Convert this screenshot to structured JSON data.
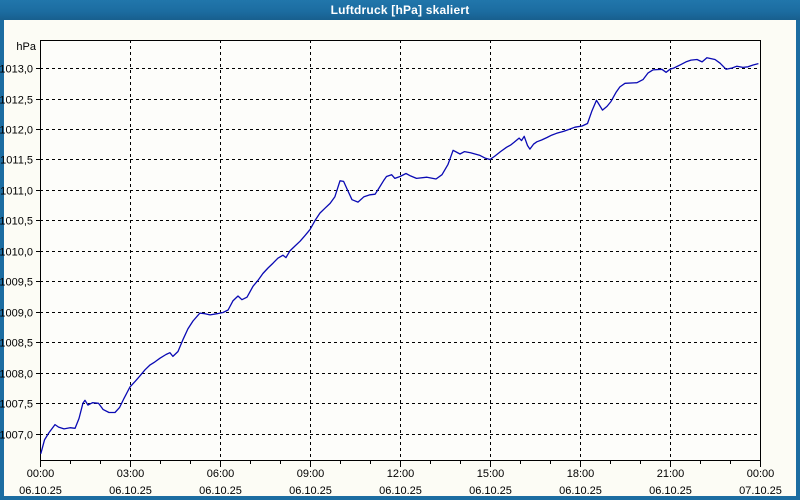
{
  "window": {
    "title": "Luftdruck [hPa] skaliert"
  },
  "colors": {
    "titlebar": "#1c6da1",
    "window_border": "#1c6da1",
    "plot_background": "#fdfdfa",
    "grid": "#000000",
    "series_line": "#0a0ab4",
    "text": "#000000"
  },
  "chart_data": {
    "type": "line",
    "title": "Luftdruck [hPa] skaliert",
    "ylabel": "hPa",
    "xlabel": "",
    "grid": "dashed",
    "legend": "none",
    "xlim_hours": [
      0,
      24
    ],
    "ylim": [
      1006.57,
      1013.46
    ],
    "x_axis": {
      "minor_tick_hours": 1,
      "major_tick_hours": 3,
      "major_ticks": [
        {
          "hour": 0,
          "time": "00:00",
          "date": "06.10.25"
        },
        {
          "hour": 3,
          "time": "03:00",
          "date": "06.10.25"
        },
        {
          "hour": 6,
          "time": "06:00",
          "date": "06.10.25"
        },
        {
          "hour": 9,
          "time": "09:00",
          "date": "06.10.25"
        },
        {
          "hour": 12,
          "time": "12:00",
          "date": "06.10.25"
        },
        {
          "hour": 15,
          "time": "15:00",
          "date": "06.10.25"
        },
        {
          "hour": 18,
          "time": "18:00",
          "date": "06.10.25"
        },
        {
          "hour": 21,
          "time": "21:00",
          "date": "06.10.25"
        },
        {
          "hour": 24,
          "time": "00:00",
          "date": "07.10.25"
        }
      ]
    },
    "y_axis": {
      "step": 0.5,
      "ticks": [
        {
          "value": 1013.0,
          "label": "1013,0"
        },
        {
          "value": 1012.5,
          "label": "1012,5"
        },
        {
          "value": 1012.0,
          "label": "1012,0"
        },
        {
          "value": 1011.5,
          "label": "1011,5"
        },
        {
          "value": 1011.0,
          "label": "1011,0"
        },
        {
          "value": 1010.5,
          "label": "1010,5"
        },
        {
          "value": 1010.0,
          "label": "1010,0"
        },
        {
          "value": 1009.5,
          "label": "1009,5"
        },
        {
          "value": 1009.0,
          "label": "1009,0"
        },
        {
          "value": 1008.5,
          "label": "1008,5"
        },
        {
          "value": 1008.0,
          "label": "1008,0"
        },
        {
          "value": 1007.5,
          "label": "1007,5"
        },
        {
          "value": 1007.0,
          "label": "1007,0"
        }
      ]
    },
    "series": [
      {
        "name": "Luftdruck",
        "unit": "hPa",
        "color": "#0a0ab4",
        "points_hour_hpa": [
          [
            0.03,
            1006.68
          ],
          [
            0.15,
            1006.9
          ],
          [
            0.3,
            1007.02
          ],
          [
            0.5,
            1007.15
          ],
          [
            0.62,
            1007.11
          ],
          [
            0.8,
            1007.08
          ],
          [
            1.0,
            1007.1
          ],
          [
            1.17,
            1007.09
          ],
          [
            1.3,
            1007.25
          ],
          [
            1.43,
            1007.5
          ],
          [
            1.5,
            1007.55
          ],
          [
            1.6,
            1007.47
          ],
          [
            1.75,
            1007.51
          ],
          [
            1.95,
            1007.5
          ],
          [
            2.1,
            1007.4
          ],
          [
            2.3,
            1007.35
          ],
          [
            2.5,
            1007.35
          ],
          [
            2.65,
            1007.43
          ],
          [
            2.8,
            1007.58
          ],
          [
            3.0,
            1007.77
          ],
          [
            3.17,
            1007.86
          ],
          [
            3.33,
            1007.95
          ],
          [
            3.5,
            1008.05
          ],
          [
            3.67,
            1008.13
          ],
          [
            3.83,
            1008.18
          ],
          [
            4.0,
            1008.24
          ],
          [
            4.2,
            1008.3
          ],
          [
            4.33,
            1008.33
          ],
          [
            4.43,
            1008.27
          ],
          [
            4.6,
            1008.35
          ],
          [
            4.77,
            1008.55
          ],
          [
            4.93,
            1008.72
          ],
          [
            5.1,
            1008.85
          ],
          [
            5.33,
            1008.98
          ],
          [
            5.5,
            1008.97
          ],
          [
            5.67,
            1008.95
          ],
          [
            5.9,
            1008.97
          ],
          [
            6.1,
            1008.99
          ],
          [
            6.27,
            1009.03
          ],
          [
            6.43,
            1009.18
          ],
          [
            6.6,
            1009.26
          ],
          [
            6.73,
            1009.2
          ],
          [
            6.9,
            1009.24
          ],
          [
            7.1,
            1009.42
          ],
          [
            7.27,
            1009.52
          ],
          [
            7.43,
            1009.63
          ],
          [
            7.6,
            1009.72
          ],
          [
            7.77,
            1009.8
          ],
          [
            7.93,
            1009.88
          ],
          [
            8.1,
            1009.93
          ],
          [
            8.2,
            1009.89
          ],
          [
            8.33,
            1010.0
          ],
          [
            8.5,
            1010.08
          ],
          [
            8.67,
            1010.16
          ],
          [
            8.83,
            1010.25
          ],
          [
            9.0,
            1010.35
          ],
          [
            9.17,
            1010.5
          ],
          [
            9.33,
            1010.62
          ],
          [
            9.5,
            1010.7
          ],
          [
            9.67,
            1010.78
          ],
          [
            9.83,
            1010.89
          ],
          [
            10.0,
            1011.15
          ],
          [
            10.12,
            1011.14
          ],
          [
            10.25,
            1011.0
          ],
          [
            10.4,
            1010.84
          ],
          [
            10.6,
            1010.8
          ],
          [
            10.8,
            1010.89
          ],
          [
            11.0,
            1010.92
          ],
          [
            11.17,
            1010.93
          ],
          [
            11.3,
            1011.03
          ],
          [
            11.45,
            1011.15
          ],
          [
            11.55,
            1011.22
          ],
          [
            11.72,
            1011.25
          ],
          [
            11.83,
            1011.19
          ],
          [
            12.0,
            1011.22
          ],
          [
            12.2,
            1011.27
          ],
          [
            12.35,
            1011.23
          ],
          [
            12.55,
            1011.19
          ],
          [
            12.9,
            1011.21
          ],
          [
            13.2,
            1011.18
          ],
          [
            13.4,
            1011.25
          ],
          [
            13.6,
            1011.42
          ],
          [
            13.77,
            1011.65
          ],
          [
            14.0,
            1011.59
          ],
          [
            14.15,
            1011.63
          ],
          [
            14.35,
            1011.61
          ],
          [
            14.65,
            1011.57
          ],
          [
            14.85,
            1011.52
          ],
          [
            15.0,
            1011.5
          ],
          [
            15.15,
            1011.55
          ],
          [
            15.35,
            1011.63
          ],
          [
            15.55,
            1011.7
          ],
          [
            15.7,
            1011.74
          ],
          [
            15.8,
            1011.78
          ],
          [
            15.97,
            1011.85
          ],
          [
            16.05,
            1011.81
          ],
          [
            16.14,
            1011.88
          ],
          [
            16.25,
            1011.73
          ],
          [
            16.33,
            1011.67
          ],
          [
            16.45,
            1011.75
          ],
          [
            16.56,
            1011.79
          ],
          [
            16.72,
            1011.82
          ],
          [
            16.9,
            1011.86
          ],
          [
            17.06,
            1011.9
          ],
          [
            17.22,
            1011.93
          ],
          [
            17.45,
            1011.96
          ],
          [
            17.67,
            1012.0
          ],
          [
            17.83,
            1012.03
          ],
          [
            18.07,
            1012.05
          ],
          [
            18.25,
            1012.09
          ],
          [
            18.4,
            1012.3
          ],
          [
            18.55,
            1012.47
          ],
          [
            18.75,
            1012.31
          ],
          [
            18.9,
            1012.37
          ],
          [
            19.03,
            1012.45
          ],
          [
            19.2,
            1012.6
          ],
          [
            19.33,
            1012.69
          ],
          [
            19.5,
            1012.75
          ],
          [
            19.9,
            1012.76
          ],
          [
            20.1,
            1012.81
          ],
          [
            20.27,
            1012.92
          ],
          [
            20.43,
            1012.97
          ],
          [
            20.73,
            1012.98
          ],
          [
            20.87,
            1012.93
          ],
          [
            21.0,
            1012.98
          ],
          [
            21.13,
            1013.0
          ],
          [
            21.37,
            1013.06
          ],
          [
            21.53,
            1013.1
          ],
          [
            21.7,
            1013.13
          ],
          [
            21.9,
            1013.14
          ],
          [
            22.07,
            1013.1
          ],
          [
            22.23,
            1013.17
          ],
          [
            22.5,
            1013.14
          ],
          [
            22.67,
            1013.08
          ],
          [
            22.87,
            1012.98
          ],
          [
            23.07,
            1013.0
          ],
          [
            23.23,
            1013.03
          ],
          [
            23.43,
            1013.01
          ],
          [
            23.6,
            1013.02
          ],
          [
            23.77,
            1013.05
          ],
          [
            23.93,
            1013.07
          ]
        ]
      }
    ]
  }
}
